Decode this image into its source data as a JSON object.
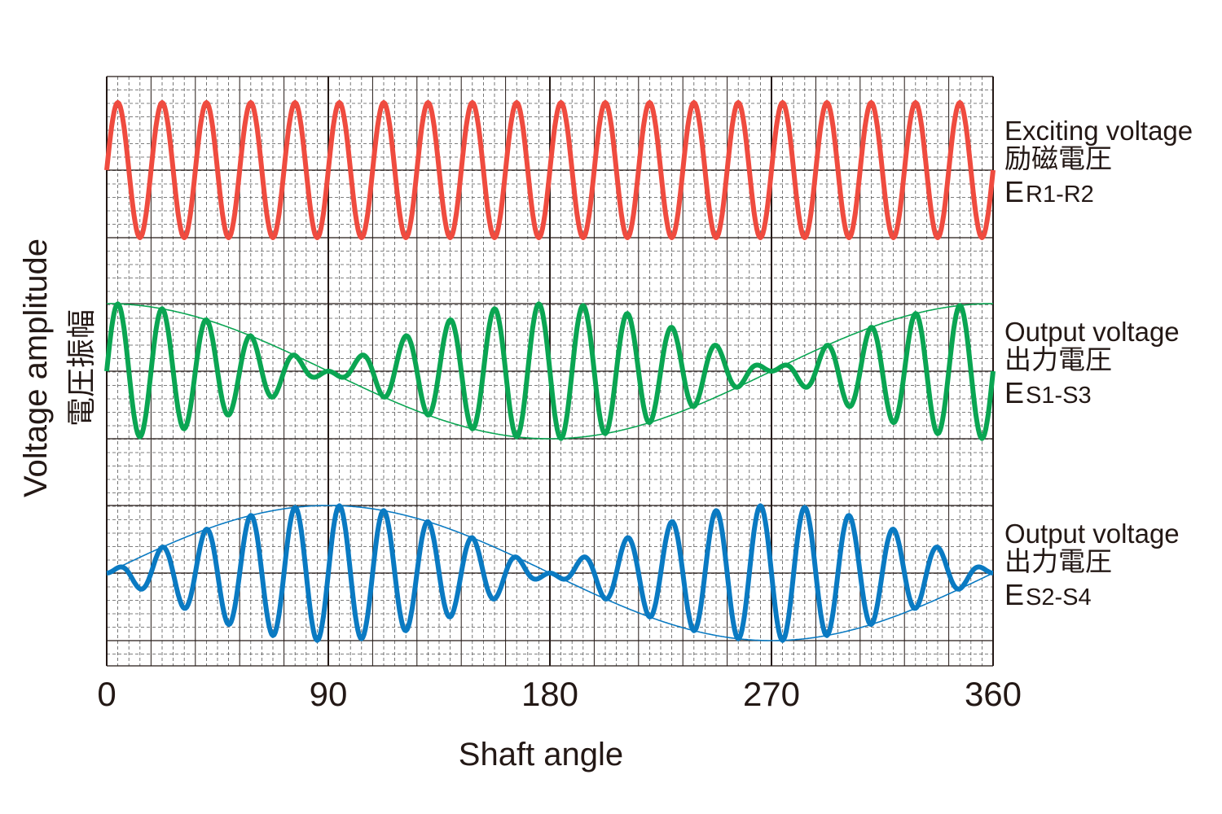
{
  "chart_data": {
    "type": "line",
    "x_label": "Shaft angle",
    "y_label": "Voltage amplitude",
    "y_label_ja": "電圧振幅",
    "xlim": [
      0,
      360
    ],
    "xticks": [
      0,
      90,
      180,
      270,
      360
    ],
    "series": [
      {
        "name": "Exciting voltage",
        "name_ja": "励磁電圧",
        "symbol": "E",
        "subscript": "R1-R2",
        "color": "#ef4b3f"
      },
      {
        "name": "Output voltage",
        "name_ja": "出力電圧",
        "symbol": "E",
        "subscript": "S1-S3",
        "color": "#0aa552"
      },
      {
        "name": "Output voltage",
        "name_ja": "出力電圧",
        "symbol": "E",
        "subscript": "S2-S4",
        "color": "#0a7ac2"
      }
    ]
  }
}
